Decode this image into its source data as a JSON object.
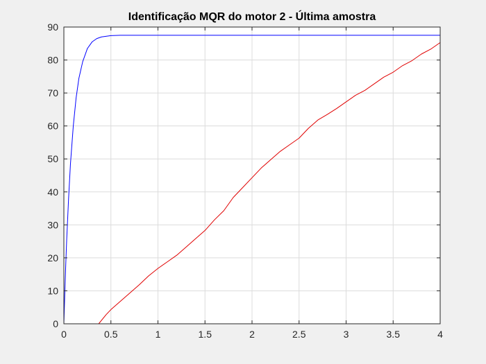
{
  "chart_data": {
    "type": "line",
    "title": "Identificação MQR do motor 2 - Última amostra",
    "xlabel": "",
    "ylabel": "",
    "xlim": [
      0,
      4
    ],
    "ylim": [
      0,
      90
    ],
    "xticks": [
      0,
      0.5,
      1,
      1.5,
      2,
      2.5,
      3,
      3.5,
      4
    ],
    "xtick_labels": [
      "0",
      "0.5",
      "1",
      "1.5",
      "2",
      "2.5",
      "3",
      "3.5",
      "4"
    ],
    "yticks": [
      0,
      10,
      20,
      30,
      40,
      50,
      60,
      70,
      80,
      90
    ],
    "ytick_labels": [
      "0",
      "10",
      "20",
      "30",
      "40",
      "50",
      "60",
      "70",
      "80",
      "90"
    ],
    "grid": true,
    "legend": "none",
    "series": [
      {
        "color": "#0000ff",
        "x": [
          0,
          0.01,
          0.02,
          0.03,
          0.05,
          0.07,
          0.1,
          0.13,
          0.16,
          0.2,
          0.25,
          0.3,
          0.35,
          0.4,
          0.5,
          0.6,
          0.7,
          0.8,
          1.0,
          1.5,
          2.0,
          2.5,
          3.0,
          3.5,
          4.0
        ],
        "y": [
          0,
          9.5,
          18,
          25.5,
          38,
          48.5,
          60,
          68.5,
          74.5,
          79.5,
          83.5,
          85.5,
          86.5,
          87,
          87.4,
          87.5,
          87.5,
          87.5,
          87.5,
          87.5,
          87.5,
          87.5,
          87.5,
          87.5,
          87.5
        ]
      },
      {
        "color": "#e00000",
        "x": [
          0,
          0.1,
          0.2,
          0.3,
          0.37,
          0.45,
          0.5,
          0.6,
          0.7,
          0.8,
          0.9,
          1.0,
          1.1,
          1.2,
          1.3,
          1.4,
          1.5,
          1.6,
          1.7,
          1.8,
          1.9,
          2.0,
          2.1,
          2.2,
          2.3,
          2.4,
          2.5,
          2.6,
          2.7,
          2.8,
          2.9,
          3.0,
          3.1,
          3.2,
          3.3,
          3.4,
          3.5,
          3.6,
          3.7,
          3.8,
          3.9,
          4.0
        ],
        "y": [
          0,
          0,
          0,
          0,
          0,
          2.8,
          4.3,
          6.8,
          9.3,
          11.8,
          14.5,
          16.8,
          18.8,
          20.8,
          23.3,
          25.8,
          28.3,
          31.5,
          34.3,
          38.3,
          41.3,
          44.3,
          47.3,
          49.8,
          52.3,
          54.3,
          56.3,
          59.3,
          61.8,
          63.5,
          65.3,
          67.3,
          69.3,
          70.8,
          72.8,
          74.8,
          76.3,
          78.3,
          79.8,
          81.8,
          83.3,
          85.3
        ]
      }
    ]
  }
}
